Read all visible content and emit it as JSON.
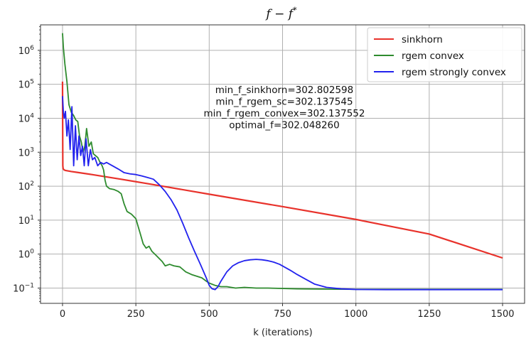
{
  "chart_data": {
    "type": "line",
    "title_prefix": "f − f",
    "title_sup": "*",
    "xlabel": "k (iterations)",
    "ylabel": "",
    "xlim": [
      -75,
      1575
    ],
    "ylim_log10": [
      -1.45,
      6.75
    ],
    "y_scale": "log",
    "grid": true,
    "legend_position": "top-right",
    "x_ticks": [
      0,
      250,
      500,
      750,
      1000,
      1250,
      1500
    ],
    "x_tick_labels": [
      "0",
      "250",
      "500",
      "750",
      "1000",
      "1250",
      "1500"
    ],
    "y_ticks_exp": [
      -1,
      0,
      1,
      2,
      3,
      4,
      5,
      6
    ],
    "y_tick_labels": [
      "10",
      "10",
      "10",
      "10",
      "10",
      "10",
      "10",
      "10"
    ],
    "y_tick_exponents": [
      "−1",
      "0",
      "1",
      "2",
      "3",
      "4",
      "5",
      "6"
    ],
    "annotations": [
      "min_f_sinkhorn=302.802598",
      "min_f_rgem_sc=302.137545",
      "min_f_rgem_convex=302.137552",
      "optimal_f=302.048260"
    ],
    "series": [
      {
        "name": "sinkhorn",
        "color": "#e8322b",
        "x": [
          0,
          1,
          2,
          4,
          6,
          8,
          10,
          15,
          20,
          30,
          50,
          100,
          200,
          300,
          500,
          750,
          1000,
          1250,
          1500
        ],
        "y": [
          120000,
          400,
          330,
          310,
          300,
          295,
          290,
          285,
          280,
          270,
          255,
          220,
          160,
          115,
          58,
          25,
          10.5,
          3.9,
          0.77
        ]
      },
      {
        "name": "rgem convex",
        "color": "#2e8b2e",
        "x": [
          0,
          3,
          8,
          15,
          22,
          30,
          38,
          45,
          52,
          58,
          64,
          70,
          76,
          82,
          90,
          98,
          105,
          112,
          120,
          128,
          135,
          140,
          145,
          150,
          160,
          175,
          190,
          200,
          210,
          220,
          235,
          250,
          265,
          275,
          285,
          295,
          305,
          320,
          340,
          350,
          365,
          380,
          400,
          420,
          440,
          460,
          475,
          490,
          500,
          520,
          540,
          560,
          590,
          620,
          660,
          700,
          800,
          900,
          1000,
          1200,
          1500
        ],
        "y": [
          3200000,
          1200000,
          400000,
          120000,
          25000,
          15000,
          12000,
          9000,
          8000,
          3000,
          2000,
          1000,
          1500,
          5000,
          1500,
          2000,
          900,
          800,
          700,
          500,
          400,
          300,
          150,
          100,
          85,
          80,
          70,
          60,
          30,
          18,
          15,
          11,
          4,
          2,
          1.5,
          1.7,
          1.2,
          0.9,
          0.6,
          0.45,
          0.5,
          0.45,
          0.42,
          0.3,
          0.25,
          0.22,
          0.2,
          0.16,
          0.14,
          0.12,
          0.11,
          0.11,
          0.1,
          0.105,
          0.1,
          0.1,
          0.095,
          0.093,
          0.092,
          0.092,
          0.092
        ]
      },
      {
        "name": "rgem strongly convex",
        "color": "#2222ee",
        "x": [
          0,
          3,
          6,
          10,
          15,
          20,
          26,
          32,
          38,
          44,
          50,
          56,
          62,
          68,
          74,
          80,
          88,
          95,
          102,
          110,
          120,
          130,
          140,
          150,
          170,
          190,
          210,
          230,
          250,
          270,
          290,
          300,
          310,
          330,
          350,
          370,
          390,
          410,
          430,
          450,
          470,
          490,
          500,
          510,
          520,
          530,
          540,
          560,
          580,
          600,
          620,
          640,
          660,
          680,
          700,
          720,
          740,
          760,
          780,
          800,
          830,
          860,
          900,
          950,
          1000,
          1100,
          1300,
          1500
        ],
        "y": [
          45000,
          15000,
          10000,
          16000,
          3000,
          9000,
          1200,
          22000,
          400,
          6000,
          600,
          3000,
          800,
          1500,
          400,
          2500,
          400,
          1200,
          600,
          700,
          400,
          500,
          450,
          500,
          400,
          320,
          250,
          230,
          220,
          200,
          180,
          170,
          160,
          110,
          70,
          40,
          20,
          8,
          3,
          1.2,
          0.5,
          0.2,
          0.12,
          0.095,
          0.09,
          0.11,
          0.16,
          0.3,
          0.45,
          0.56,
          0.64,
          0.68,
          0.7,
          0.68,
          0.64,
          0.58,
          0.5,
          0.4,
          0.32,
          0.25,
          0.18,
          0.13,
          0.105,
          0.095,
          0.091,
          0.09,
          0.09,
          0.09
        ]
      }
    ]
  }
}
